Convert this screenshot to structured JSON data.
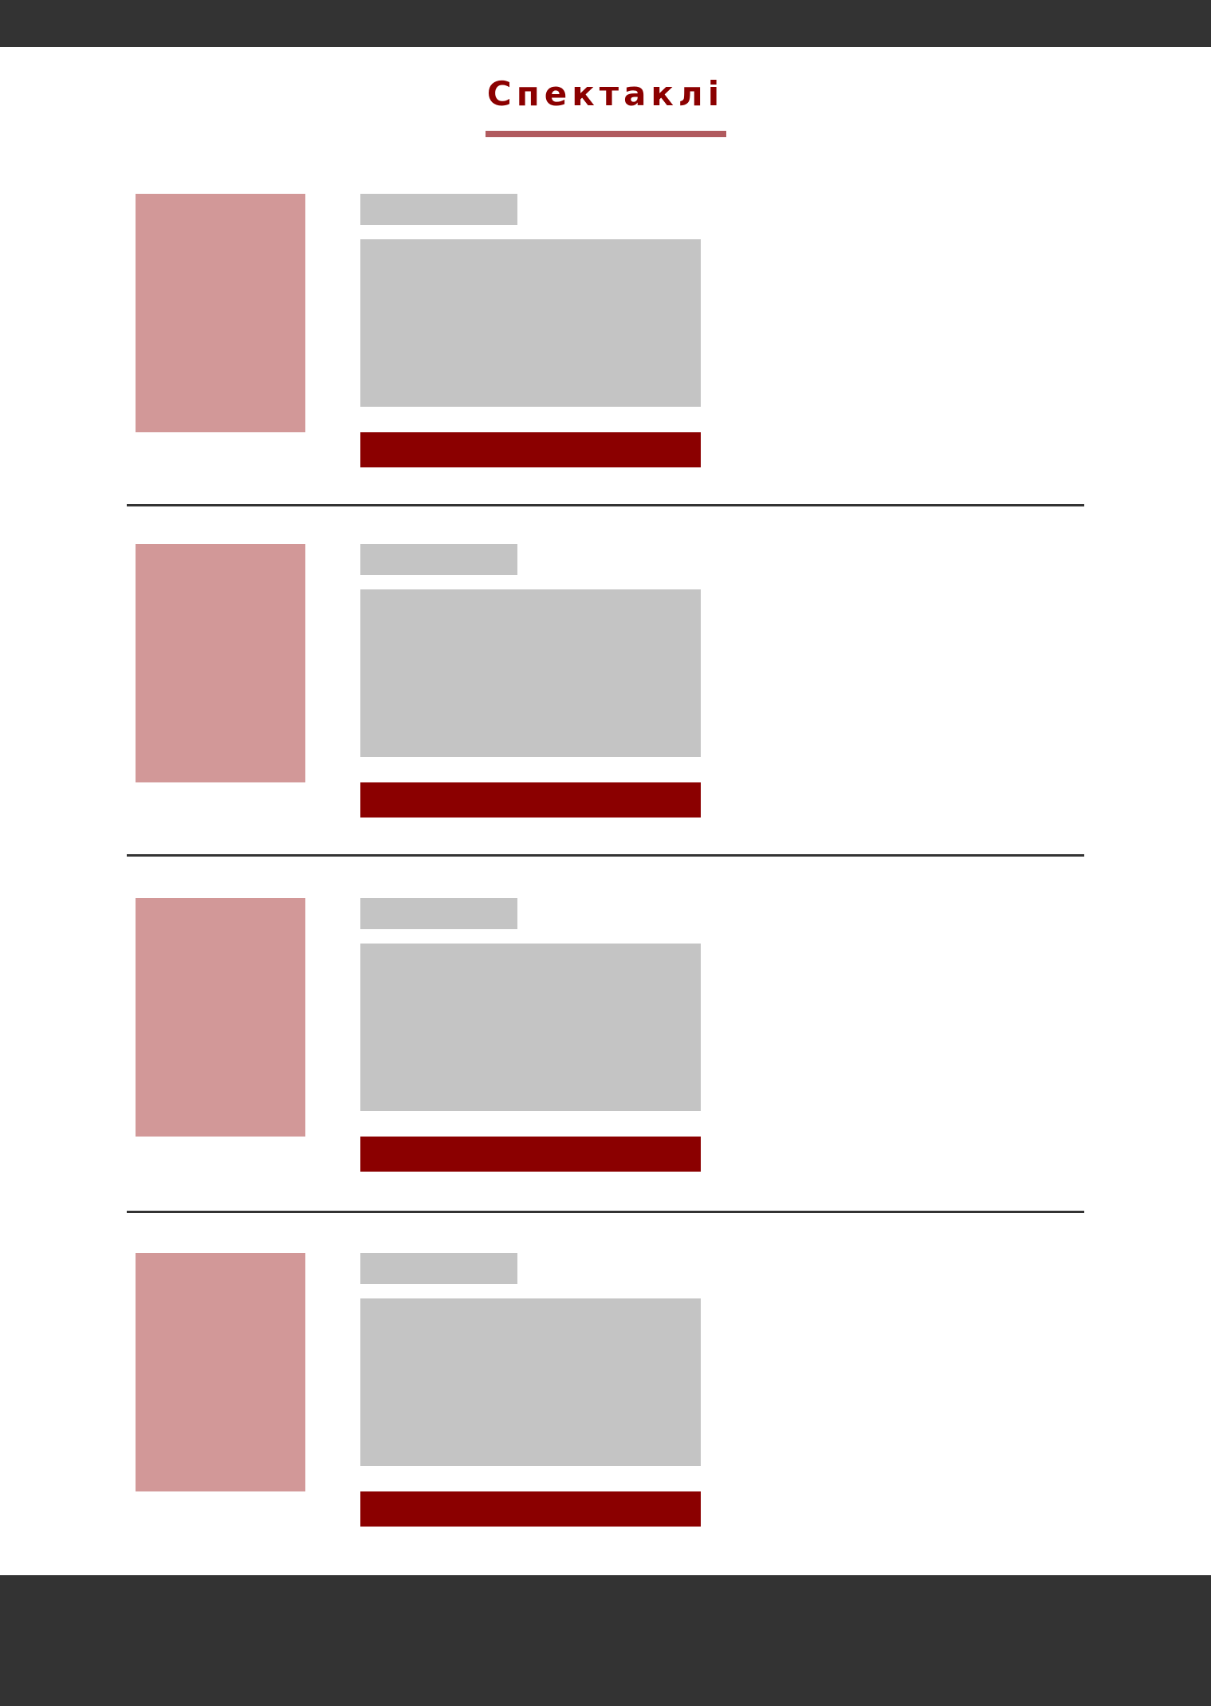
{
  "page": {
    "title": "Спектаклі"
  },
  "colors": {
    "header_bg": "#333333",
    "footer_bg": "#333333",
    "accent": "#8b0000",
    "underline": "#b05a5e",
    "poster_placeholder": "#d29898",
    "text_placeholder": "#c4c4c4",
    "divider": "#333333"
  },
  "performances": [
    {
      "poster": "poster-placeholder",
      "button_label": ""
    },
    {
      "poster": "poster-placeholder",
      "button_label": ""
    },
    {
      "poster": "poster-placeholder",
      "button_label": ""
    },
    {
      "poster": "poster-placeholder",
      "button_label": ""
    }
  ]
}
